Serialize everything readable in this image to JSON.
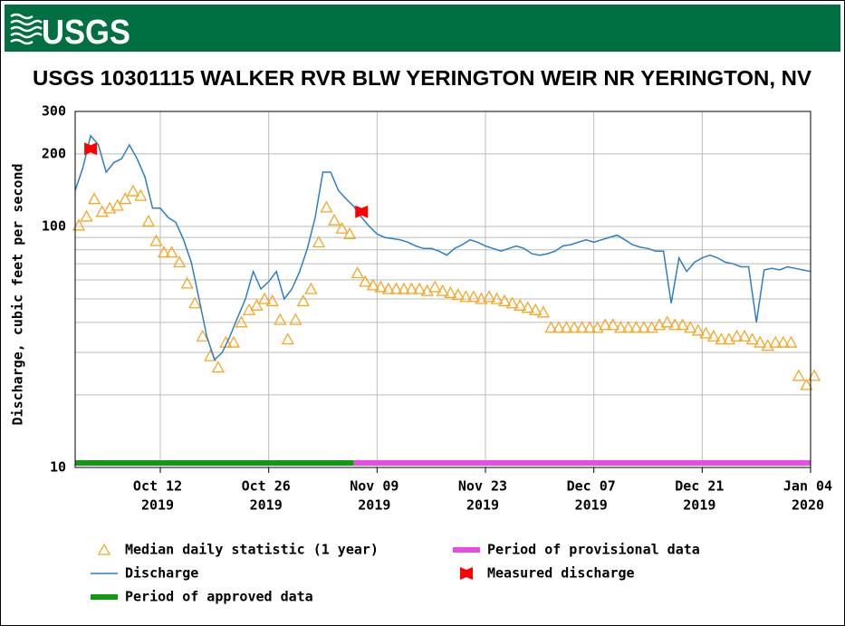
{
  "header": {
    "logo_text": "USGS"
  },
  "chart_data": {
    "type": "line",
    "title": "USGS 10301115 WALKER RVR BLW YERINGTON WEIR NR YERINGTON, NV",
    "y_label": "Discharge, cubic feet per second",
    "log_y": true,
    "grid": true,
    "xlim": [
      "2019-10-01",
      "2020-01-04"
    ],
    "ylim": [
      10,
      300
    ],
    "yticks": [
      10,
      100,
      200,
      300
    ],
    "yminor": [
      20,
      30,
      40,
      50,
      60,
      70,
      80,
      90
    ],
    "xticks": [
      {
        "value": "2019-10-12",
        "label": [
          "Oct 12",
          "2019"
        ]
      },
      {
        "value": "2019-10-26",
        "label": [
          "Oct 26",
          "2019"
        ]
      },
      {
        "value": "2019-11-09",
        "label": [
          "Nov 09",
          "2019"
        ]
      },
      {
        "value": "2019-11-23",
        "label": [
          "Nov 23",
          "2019"
        ]
      },
      {
        "value": "2019-12-07",
        "label": [
          "Dec 07",
          "2019"
        ]
      },
      {
        "value": "2019-12-21",
        "label": [
          "Dec 21",
          "2019"
        ]
      },
      {
        "value": "2020-01-04",
        "label": [
          "Jan 04",
          "2020"
        ]
      }
    ],
    "x": [
      "2019-10-01",
      "2019-10-02",
      "2019-10-03",
      "2019-10-04",
      "2019-10-05",
      "2019-10-06",
      "2019-10-07",
      "2019-10-08",
      "2019-10-09",
      "2019-10-10",
      "2019-10-11",
      "2019-10-12",
      "2019-10-13",
      "2019-10-14",
      "2019-10-15",
      "2019-10-16",
      "2019-10-17",
      "2019-10-18",
      "2019-10-19",
      "2019-10-20",
      "2019-10-21",
      "2019-10-22",
      "2019-10-23",
      "2019-10-24",
      "2019-10-25",
      "2019-10-26",
      "2019-10-27",
      "2019-10-28",
      "2019-10-29",
      "2019-10-30",
      "2019-10-31",
      "2019-11-01",
      "2019-11-02",
      "2019-11-03",
      "2019-11-04",
      "2019-11-05",
      "2019-11-06",
      "2019-11-07",
      "2019-11-08",
      "2019-11-09",
      "2019-11-10",
      "2019-11-11",
      "2019-11-12",
      "2019-11-13",
      "2019-11-14",
      "2019-11-15",
      "2019-11-16",
      "2019-11-17",
      "2019-11-18",
      "2019-11-19",
      "2019-11-20",
      "2019-11-21",
      "2019-11-22",
      "2019-11-23",
      "2019-11-24",
      "2019-11-25",
      "2019-11-26",
      "2019-11-27",
      "2019-11-28",
      "2019-11-29",
      "2019-11-30",
      "2019-12-01",
      "2019-12-02",
      "2019-12-03",
      "2019-12-04",
      "2019-12-05",
      "2019-12-06",
      "2019-12-07",
      "2019-12-08",
      "2019-12-09",
      "2019-12-10",
      "2019-12-11",
      "2019-12-12",
      "2019-12-13",
      "2019-12-14",
      "2019-12-15",
      "2019-12-16",
      "2019-12-17",
      "2019-12-18",
      "2019-12-19",
      "2019-12-20",
      "2019-12-21",
      "2019-12-22",
      "2019-12-23",
      "2019-12-24",
      "2019-12-25",
      "2019-12-26",
      "2019-12-27",
      "2019-12-28",
      "2019-12-29",
      "2019-12-30",
      "2019-12-31",
      "2020-01-01",
      "2020-01-02",
      "2020-01-03",
      "2020-01-04"
    ],
    "series": [
      {
        "name": "Median daily statistic (1 year)",
        "color": "#f5a623",
        "marker": "triangle",
        "values": [
          101,
          110,
          130,
          115,
          119,
          122,
          130,
          140,
          134,
          105,
          87,
          78,
          78,
          71,
          58,
          48,
          35,
          29,
          26,
          33,
          33,
          40,
          45,
          47,
          50,
          49,
          41,
          34,
          41,
          49,
          55,
          86,
          120,
          106,
          98,
          93,
          64,
          59,
          57,
          56,
          55,
          55,
          55,
          55,
          55,
          54,
          56,
          54,
          53,
          52,
          51,
          51,
          50,
          51,
          50,
          49,
          48,
          47,
          46,
          45,
          44,
          38,
          38,
          38,
          38,
          38,
          38,
          38,
          39,
          39,
          38,
          38,
          38,
          38,
          38,
          39,
          40,
          39,
          39,
          38,
          37,
          36,
          35,
          34,
          34,
          35,
          35,
          34,
          33,
          32,
          33,
          33,
          33,
          24,
          22,
          24
        ]
      },
      {
        "name": "Discharge",
        "color": "#2a7fc7",
        "marker": "line",
        "values": [
          141,
          175,
          238,
          218,
          168,
          184,
          191,
          218,
          191,
          161,
          119,
          119,
          109,
          104,
          88,
          71,
          50,
          35,
          28,
          30,
          35,
          42,
          50,
          65,
          55,
          59,
          65,
          50,
          55,
          65,
          81,
          109,
          168,
          168,
          141,
          130,
          121,
          109,
          100,
          93,
          90,
          89,
          88,
          86,
          83,
          81,
          81,
          79,
          76,
          81,
          84,
          88,
          86,
          83,
          81,
          79,
          81,
          83,
          81,
          77,
          76,
          77,
          79,
          83,
          84,
          86,
          88,
          86,
          88,
          90,
          92,
          88,
          84,
          82,
          81,
          79,
          79,
          48,
          74,
          65,
          71,
          74,
          76,
          74,
          71,
          70,
          68,
          68,
          40,
          66,
          67,
          66,
          68,
          67,
          66,
          65
        ]
      },
      {
        "name": "Measured discharge",
        "color": "#ff0000",
        "marker": "bowtie",
        "x": [
          "2019-10-03",
          "2019-11-07"
        ],
        "values": [
          210,
          115
        ]
      }
    ],
    "periods": [
      {
        "name": "Period of approved data",
        "color": "#119911",
        "start": "2019-10-01",
        "end": "2019-11-06"
      },
      {
        "name": "Period of provisional data",
        "color": "#e64ce6",
        "start": "2019-11-06",
        "end": "2020-01-04"
      }
    ]
  }
}
